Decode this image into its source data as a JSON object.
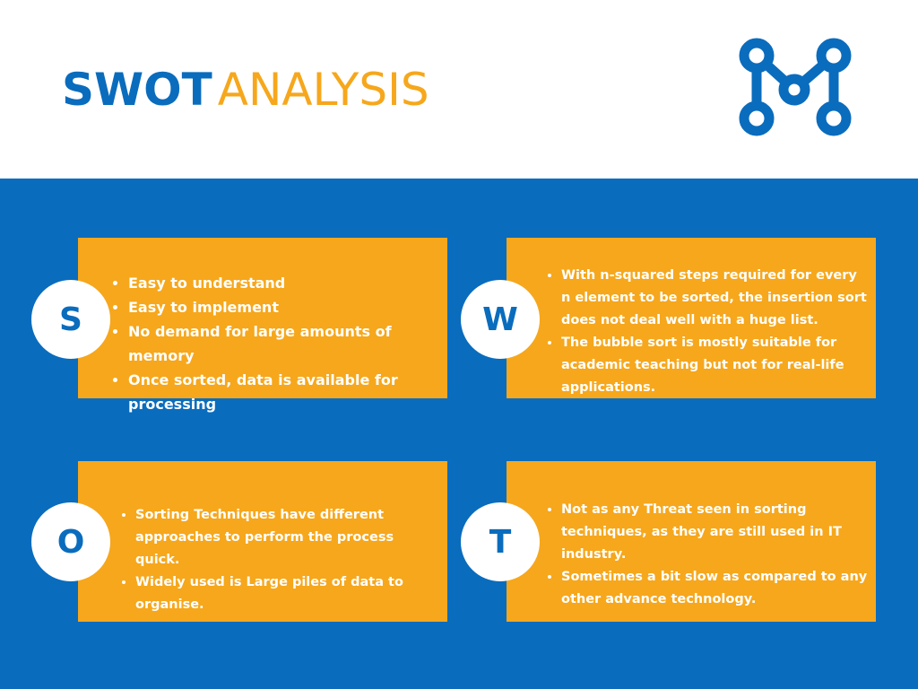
{
  "header": {
    "title_part1": "SWOT",
    "title_part2": "ANALYSIS",
    "logo_icon": "network-m-icon"
  },
  "colors": {
    "blue": "#0a6cbd",
    "orange": "#f6a71c",
    "white": "#ffffff"
  },
  "swot": {
    "strengths": {
      "letter": "S",
      "items": [
        "Easy to understand",
        "Easy to implement",
        "No demand for large amounts of memory",
        "Once sorted, data is available for processing"
      ]
    },
    "weaknesses": {
      "letter": "W",
      "items": [
        "With n-squared steps required for every n element to be sorted, the insertion sort does not deal well with a huge list.",
        "The bubble sort is mostly suitable for academic teaching but not for real-life applications."
      ]
    },
    "opportunities": {
      "letter": "O",
      "items": [
        "Sorting Techniques have different approaches to perform the process quick.",
        "Widely used is Large piles of data to organise."
      ]
    },
    "threats": {
      "letter": "T",
      "items": [
        "Not as any Threat seen in sorting techniques, as they are still used in IT industry.",
        "Sometimes a bit slow as compared to any other advance technology."
      ]
    }
  }
}
